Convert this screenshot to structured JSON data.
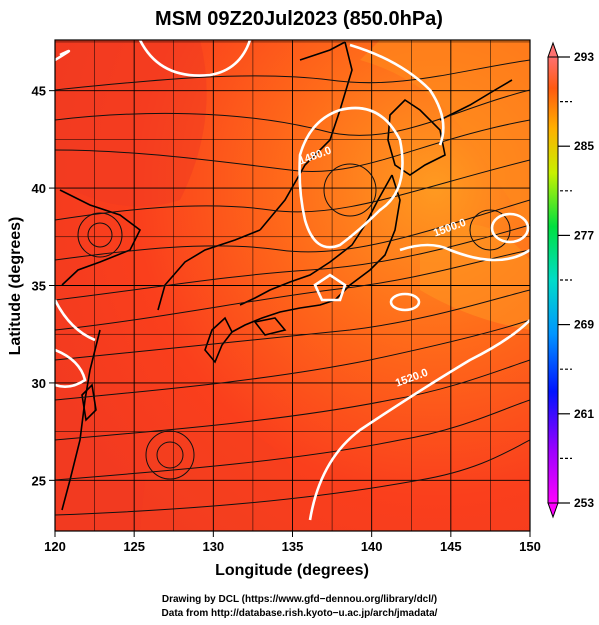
{
  "chart_data": {
    "type": "heatmap",
    "title": "MSM 09Z20Jul2023 (850.0hPa)",
    "xlabel": "Longitude (degrees)",
    "ylabel": "Latitude  (degrees)",
    "xlim": [
      120,
      150
    ],
    "ylim": [
      22.4,
      47.6
    ],
    "x_ticks": [
      120,
      125,
      130,
      135,
      140,
      145,
      150
    ],
    "y_ticks": [
      25,
      30,
      35,
      40,
      45
    ],
    "grid": true,
    "overlays": [
      "coastlines",
      "streamlines",
      "geopotential height contours"
    ],
    "colorbar": {
      "position": "right",
      "min": 253,
      "max": 293,
      "ticks": [
        293,
        285,
        277,
        269,
        261,
        253
      ],
      "dashed_ticks": [
        289,
        281,
        273,
        265,
        257
      ]
    },
    "contour_labels": [
      {
        "text": "1480.0",
        "lon": 136.5,
        "lat": 41.5
      },
      {
        "text": "1520.0",
        "lon": 142.6,
        "lat": 30.1
      },
      {
        "text": "1500.0",
        "lon": 145.0,
        "lat": 37.8
      }
    ]
  },
  "credits": {
    "line1": "Drawing by DCL (https://www.gfd−dennou.org/library/dcl/)",
    "line2": "Data from http://database.rish.kyoto−u.ac.jp/arch/jmadata/"
  }
}
